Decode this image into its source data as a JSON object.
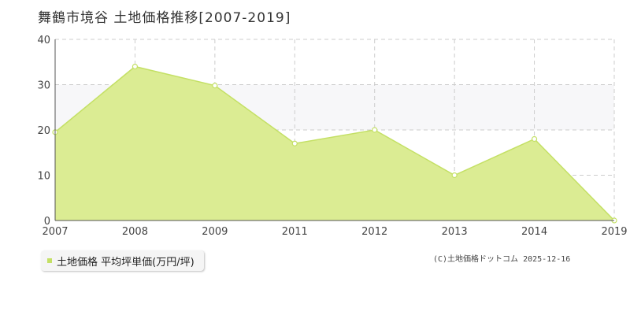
{
  "title": "舞鶴市境谷 土地価格推移[2007-2019]",
  "legend": {
    "label": "土地価格 平均坪単価(万円/坪)"
  },
  "copyright": "(C)土地価格ドットコム 2025-12-16",
  "colors": {
    "area_fill": "#dbec93",
    "line": "#c4e065",
    "marker_fill": "#ffffff",
    "grid": "#cccccc",
    "band": "#f7f7f9",
    "axis": "#555555",
    "tick_text": "#444444"
  },
  "chart_data": {
    "type": "area",
    "title": "舞鶴市境谷 土地価格推移[2007-2019]",
    "xlabel": "",
    "ylabel": "",
    "x_ticks": [
      "2007",
      "2008",
      "2009",
      "2011",
      "2012",
      "2013",
      "2014",
      "2019"
    ],
    "y_ticks": [
      "0",
      "10",
      "20",
      "30",
      "40"
    ],
    "ylim": [
      0,
      40
    ],
    "grid": true,
    "legend_placement": "bottom-left",
    "series": [
      {
        "name": "土地価格 平均坪単価(万円/坪)",
        "values": [
          19.5,
          34,
          29.8,
          17,
          20,
          10,
          18,
          0
        ]
      }
    ]
  }
}
